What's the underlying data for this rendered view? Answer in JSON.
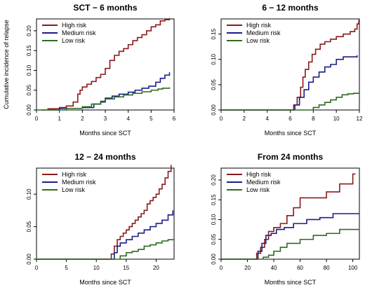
{
  "chart_data": [
    {
      "type": "line",
      "title": "SCT − 6 months",
      "xlabel": "Months since SCT",
      "ylabel": "Cumulative incidence of relapse",
      "xlim": [
        0,
        6
      ],
      "ylim": [
        0,
        0.23
      ],
      "xticks": [
        "0",
        "1",
        "2",
        "3",
        "4",
        "5",
        "6"
      ],
      "yticks": [
        "0.00",
        "0.05",
        "0.10",
        "0.15",
        "0.20"
      ],
      "legend_position": "top-left",
      "series": [
        {
          "name": "High risk",
          "color": "#8b1a1a",
          "x": [
            0.2,
            0.5,
            1.0,
            1.3,
            1.6,
            1.8,
            1.9,
            2.0,
            2.2,
            2.4,
            2.6,
            2.8,
            3.0,
            3.2,
            3.4,
            3.6,
            3.8,
            4.0,
            4.2,
            4.4,
            4.6,
            4.8,
            5.0,
            5.2,
            5.4,
            5.6,
            5.8
          ],
          "y": [
            0.0,
            0.003,
            0.006,
            0.01,
            0.02,
            0.04,
            0.05,
            0.058,
            0.065,
            0.072,
            0.082,
            0.09,
            0.105,
            0.125,
            0.138,
            0.148,
            0.155,
            0.165,
            0.175,
            0.183,
            0.19,
            0.2,
            0.21,
            0.215,
            0.225,
            0.228,
            0.232
          ]
        },
        {
          "name": "Medium risk",
          "color": "#1c1c8c",
          "x": [
            0.5,
            1.0,
            2.0,
            2.5,
            2.8,
            3.0,
            3.3,
            3.6,
            4.0,
            4.3,
            4.6,
            4.9,
            5.2,
            5.4,
            5.6,
            5.8
          ],
          "y": [
            0.0,
            0.004,
            0.006,
            0.015,
            0.02,
            0.03,
            0.035,
            0.04,
            0.045,
            0.05,
            0.055,
            0.06,
            0.07,
            0.08,
            0.088,
            0.095
          ]
        },
        {
          "name": "Low risk",
          "color": "#2e6b1e",
          "x": [
            0.0,
            1.3,
            2.0,
            2.4,
            2.8,
            3.0,
            3.4,
            3.8,
            4.2,
            4.6,
            5.0,
            5.3,
            5.5,
            5.8
          ],
          "y": [
            0.0,
            0.004,
            0.008,
            0.015,
            0.022,
            0.028,
            0.033,
            0.038,
            0.042,
            0.046,
            0.05,
            0.053,
            0.055,
            0.057
          ]
        }
      ]
    },
    {
      "type": "line",
      "title": "6 − 12 months",
      "xlabel": "Months since SCT",
      "ylabel": "",
      "xlim": [
        0,
        12
      ],
      "ylim": [
        0,
        0.18
      ],
      "xticks": [
        "0",
        "2",
        "4",
        "6",
        "8",
        "10",
        "12"
      ],
      "yticks": [
        "0.00",
        "0.05",
        "0.10",
        "0.15"
      ],
      "legend_position": "top-left",
      "series": [
        {
          "name": "High risk",
          "color": "#8b1a1a",
          "x": [
            0,
            6.0,
            6.3,
            6.6,
            6.9,
            7.1,
            7.3,
            7.6,
            7.9,
            8.2,
            8.6,
            9.0,
            9.5,
            10.0,
            10.6,
            11.2,
            11.6,
            11.8,
            11.95
          ],
          "y": [
            0.0,
            0.0,
            0.01,
            0.025,
            0.045,
            0.065,
            0.08,
            0.095,
            0.11,
            0.12,
            0.13,
            0.135,
            0.14,
            0.145,
            0.15,
            0.155,
            0.16,
            0.17,
            0.178
          ]
        },
        {
          "name": "Medium risk",
          "color": "#1c1c8c",
          "x": [
            0,
            6.0,
            6.4,
            6.8,
            7.2,
            7.6,
            8.0,
            8.5,
            9.0,
            9.5,
            10.0,
            10.6,
            11.2,
            11.8
          ],
          "y": [
            0.0,
            0.0,
            0.01,
            0.025,
            0.04,
            0.055,
            0.065,
            0.075,
            0.085,
            0.09,
            0.1,
            0.105,
            0.105,
            0.108
          ]
        },
        {
          "name": "Low risk",
          "color": "#2e6b1e",
          "x": [
            0,
            7.5,
            8.0,
            8.5,
            9.0,
            9.5,
            10.0,
            10.5,
            11.0,
            11.5,
            12.0
          ],
          "y": [
            0.0,
            0.0,
            0.005,
            0.01,
            0.015,
            0.02,
            0.025,
            0.03,
            0.032,
            0.033,
            0.033
          ]
        }
      ]
    },
    {
      "type": "line",
      "title": "12 − 24 months",
      "xlabel": "Months since SCT",
      "ylabel": "",
      "xlim": [
        0,
        23
      ],
      "ylim": [
        0,
        0.14
      ],
      "xticks": [
        "0",
        "5",
        "10",
        "15",
        "20"
      ],
      "yticks": [
        "0.00",
        "0.05",
        "0.10"
      ],
      "legend_position": "top-left",
      "series": [
        {
          "name": "High risk",
          "color": "#8b1a1a",
          "x": [
            0,
            12.0,
            12.5,
            13.0,
            13.5,
            14.0,
            14.5,
            15.0,
            15.5,
            16.0,
            16.5,
            17.0,
            17.5,
            18.0,
            18.5,
            19.0,
            19.5,
            20.0,
            20.5,
            21.0,
            21.5,
            22.0,
            22.5
          ],
          "y": [
            0.0,
            0.0,
            0.008,
            0.02,
            0.03,
            0.035,
            0.04,
            0.045,
            0.05,
            0.055,
            0.06,
            0.065,
            0.07,
            0.075,
            0.085,
            0.09,
            0.095,
            0.1,
            0.108,
            0.115,
            0.125,
            0.135,
            0.145
          ]
        },
        {
          "name": "Medium risk",
          "color": "#1c1c8c",
          "x": [
            0,
            12.5,
            13.0,
            13.5,
            14.0,
            15.0,
            16.0,
            17.0,
            18.0,
            19.0,
            20.0,
            21.0,
            22.0,
            22.8
          ],
          "y": [
            0.0,
            0.0,
            0.01,
            0.02,
            0.025,
            0.03,
            0.035,
            0.04,
            0.045,
            0.05,
            0.055,
            0.06,
            0.068,
            0.075
          ]
        },
        {
          "name": "Low risk",
          "color": "#2e6b1e",
          "x": [
            0,
            13.0,
            14.0,
            15.0,
            16.0,
            17.0,
            18.0,
            19.0,
            20.0,
            21.0,
            22.0,
            23.0
          ],
          "y": [
            0.0,
            0.0,
            0.005,
            0.01,
            0.012,
            0.015,
            0.02,
            0.022,
            0.025,
            0.028,
            0.03,
            0.03
          ]
        }
      ]
    },
    {
      "type": "line",
      "title": "From 24 months",
      "xlabel": "Months since SCT",
      "ylabel": "",
      "xlim": [
        0,
        105
      ],
      "ylim": [
        0,
        0.23
      ],
      "xticks": [
        "0",
        "20",
        "40",
        "60",
        "80",
        "100"
      ],
      "yticks": [
        "0.00",
        "0.05",
        "0.10",
        "0.15",
        "0.20"
      ],
      "legend_position": "top-left",
      "series": [
        {
          "name": "High risk",
          "color": "#8b1a1a",
          "x": [
            0,
            24,
            27,
            30,
            33,
            36,
            40,
            45,
            50,
            55,
            60,
            70,
            80,
            90,
            100,
            102
          ],
          "y": [
            0.0,
            0.0,
            0.015,
            0.03,
            0.05,
            0.07,
            0.08,
            0.09,
            0.11,
            0.13,
            0.155,
            0.155,
            0.17,
            0.19,
            0.215,
            0.215
          ]
        },
        {
          "name": "Medium risk",
          "color": "#1c1c8c",
          "x": [
            0,
            25,
            28,
            31,
            34,
            38,
            42,
            48,
            55,
            65,
            75,
            85,
            95,
            105
          ],
          "y": [
            0.0,
            0.0,
            0.02,
            0.04,
            0.06,
            0.065,
            0.075,
            0.08,
            0.09,
            0.1,
            0.105,
            0.115,
            0.115,
            0.115
          ]
        },
        {
          "name": "Low risk",
          "color": "#2e6b1e",
          "x": [
            0,
            28,
            32,
            36,
            40,
            45,
            50,
            60,
            70,
            80,
            90,
            100,
            105
          ],
          "y": [
            0.0,
            0.0,
            0.005,
            0.01,
            0.02,
            0.03,
            0.04,
            0.05,
            0.06,
            0.065,
            0.075,
            0.075,
            0.075
          ]
        }
      ]
    }
  ]
}
